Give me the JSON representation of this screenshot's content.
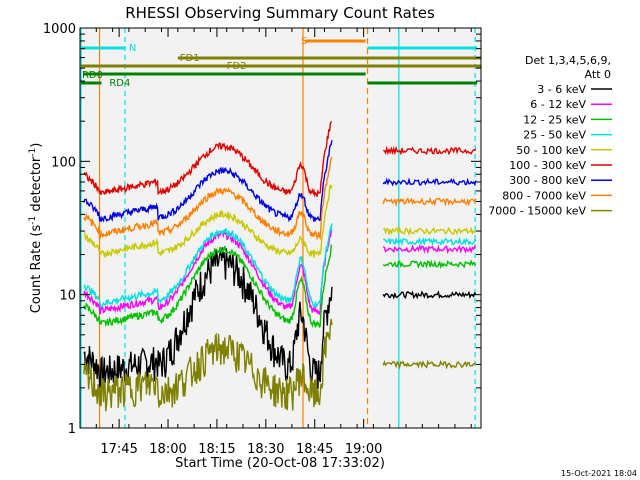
{
  "chart_data": {
    "type": "line",
    "title": "RHESSI Observing Summary Count Rates",
    "xlabel": "Start Time (20-Oct-08 17:33:02)",
    "ylabel": "Count Rate (s",
    "ylabel_sup": "-1",
    "ylabel_tail": " detector",
    "ylabel_end": ")",
    "yscale": "log",
    "ylim": [
      1,
      1000
    ],
    "xlim_minutes": [
      17.55,
      19.6
    ],
    "x_ticks": [
      {
        "t": 17.75,
        "label": "17:45"
      },
      {
        "t": 18.0,
        "label": "18:00"
      },
      {
        "t": 18.25,
        "label": "18:15"
      },
      {
        "t": 18.5,
        "label": "18:30"
      },
      {
        "t": 18.75,
        "label": "18:45"
      },
      {
        "t": 19.0,
        "label": "19:00"
      }
    ],
    "y_ticks": [
      {
        "v": 1,
        "label": "1"
      },
      {
        "v": 10,
        "label": "10"
      },
      {
        "v": 100,
        "label": "100"
      },
      {
        "v": 1000,
        "label": "1000"
      }
    ],
    "legend": {
      "header1": "Det 1,3,4,5,6,9,",
      "header2": "Att 0",
      "placement": "right"
    },
    "series": [
      {
        "name": "3 - 6 keV",
        "color": "#000000",
        "level": [
          2.6,
          17.5,
          3.4,
          10
        ]
      },
      {
        "name": "6 - 12 keV",
        "color": "#ff00ff",
        "level": [
          7.5,
          28,
          9.5,
          22
        ]
      },
      {
        "name": "12 - 25 keV",
        "color": "#00c000",
        "level": [
          6,
          22,
          7,
          17
        ]
      },
      {
        "name": "25 - 50 keV",
        "color": "#00e0e0",
        "level": [
          8.5,
          30,
          10,
          25
        ]
      },
      {
        "name": "50 - 100 keV",
        "color": "#c8c800",
        "level": [
          20,
          40,
          21,
          30
        ]
      },
      {
        "name": "100 - 300 keV",
        "color": "#e00000",
        "level": [
          57,
          130,
          62,
          120
        ]
      },
      {
        "name": "300 - 800 keV",
        "color": "#0000e0",
        "level": [
          37,
          85,
          42,
          70
        ]
      },
      {
        "name": "800 - 7000 keV",
        "color": "#ff8000",
        "level": [
          28,
          60,
          32,
          50
        ]
      },
      {
        "name": "7000 - 15000 keV",
        "color": "#808000",
        "level": [
          1.8,
          4,
          2,
          3
        ]
      }
    ],
    "flags": {
      "N": {
        "label": "N",
        "color": "#00e0e0"
      },
      "S": {
        "label": "S",
        "color": "#ff8000"
      },
      "FD1": {
        "label": "FD1",
        "color": "#808000"
      },
      "FD2": {
        "label": "FD2",
        "color": "#808000"
      },
      "RD0": {
        "label": "RD0",
        "color": "#008000"
      },
      "RD4": {
        "label": "RD4",
        "color": "#008000"
      }
    },
    "timestamp": "15-Oct-2021 18:04"
  }
}
